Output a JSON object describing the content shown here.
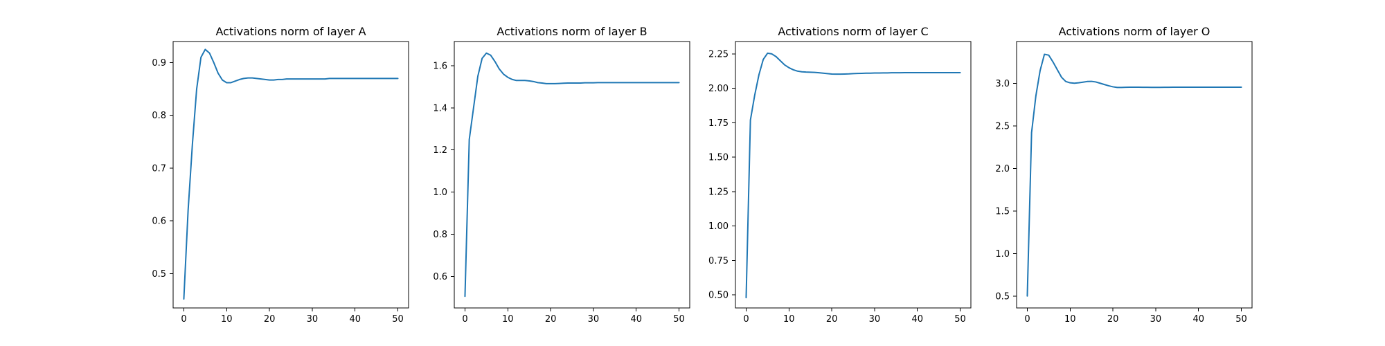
{
  "colors": {
    "series": "#1f77b4",
    "axis": "#000000",
    "background": "#ffffff"
  },
  "chart_data": [
    {
      "type": "line",
      "title": "Activations norm of layer A",
      "xlabel": "",
      "ylabel": "",
      "xlim": [
        -2.5,
        52.5
      ],
      "ylim": [
        0.435,
        0.94
      ],
      "xticks": [
        0,
        10,
        20,
        30,
        40,
        50
      ],
      "yticks": [
        0.5,
        0.6,
        0.7,
        0.8,
        0.9
      ],
      "ytick_labels": [
        "0.5",
        "0.6",
        "0.7",
        "0.8",
        "0.9"
      ],
      "grid": false,
      "series": [
        {
          "x": [
            0,
            1,
            2,
            3,
            4,
            5,
            6,
            7,
            8,
            9,
            10,
            11,
            12,
            13,
            14,
            15,
            16,
            17,
            18,
            19,
            20,
            21,
            22,
            23,
            24,
            25,
            26,
            27,
            28,
            29,
            30,
            31,
            32,
            33,
            34,
            35,
            36,
            37,
            38,
            39,
            40,
            41,
            42,
            43,
            44,
            45,
            46,
            47,
            48,
            49,
            50
          ],
          "values": [
            0.452,
            0.62,
            0.745,
            0.85,
            0.91,
            0.925,
            0.918,
            0.9,
            0.88,
            0.867,
            0.862,
            0.862,
            0.865,
            0.868,
            0.87,
            0.871,
            0.871,
            0.87,
            0.869,
            0.868,
            0.867,
            0.867,
            0.868,
            0.868,
            0.869,
            0.869,
            0.869,
            0.869,
            0.869,
            0.869,
            0.869,
            0.869,
            0.869,
            0.869,
            0.87,
            0.87,
            0.87,
            0.87,
            0.87,
            0.87,
            0.87,
            0.87,
            0.87,
            0.87,
            0.87,
            0.87,
            0.87,
            0.87,
            0.87,
            0.87,
            0.87
          ]
        }
      ]
    },
    {
      "type": "line",
      "title": "Activations norm of layer B",
      "xlabel": "",
      "ylabel": "",
      "xlim": [
        -2.5,
        52.5
      ],
      "ylim": [
        0.45,
        1.715
      ],
      "xticks": [
        0,
        10,
        20,
        30,
        40,
        50
      ],
      "yticks": [
        0.6,
        0.8,
        1.0,
        1.2,
        1.4,
        1.6
      ],
      "ytick_labels": [
        "0.6",
        "0.8",
        "1.0",
        "1.2",
        "1.4",
        "1.6"
      ],
      "grid": false,
      "series": [
        {
          "x": [
            0,
            1,
            2,
            3,
            4,
            5,
            6,
            7,
            8,
            9,
            10,
            11,
            12,
            13,
            14,
            15,
            16,
            17,
            18,
            19,
            20,
            21,
            22,
            23,
            24,
            25,
            26,
            27,
            28,
            29,
            30,
            31,
            32,
            33,
            34,
            35,
            36,
            37,
            38,
            39,
            40,
            41,
            42,
            43,
            44,
            45,
            46,
            47,
            48,
            49,
            50
          ],
          "values": [
            0.505,
            1.25,
            1.4,
            1.55,
            1.635,
            1.66,
            1.65,
            1.62,
            1.585,
            1.56,
            1.545,
            1.535,
            1.53,
            1.53,
            1.53,
            1.528,
            1.525,
            1.52,
            1.518,
            1.515,
            1.515,
            1.515,
            1.516,
            1.517,
            1.518,
            1.518,
            1.518,
            1.518,
            1.519,
            1.519,
            1.519,
            1.52,
            1.52,
            1.52,
            1.52,
            1.52,
            1.52,
            1.52,
            1.52,
            1.52,
            1.52,
            1.52,
            1.52,
            1.52,
            1.52,
            1.52,
            1.52,
            1.52,
            1.52,
            1.52,
            1.52
          ]
        }
      ]
    },
    {
      "type": "line",
      "title": "Activations norm of layer C",
      "xlabel": "",
      "ylabel": "",
      "xlim": [
        -2.5,
        52.5
      ],
      "ylim": [
        0.405,
        2.34
      ],
      "xticks": [
        0,
        10,
        20,
        30,
        40,
        50
      ],
      "yticks": [
        0.5,
        0.75,
        1.0,
        1.25,
        1.5,
        1.75,
        2.0,
        2.25
      ],
      "ytick_labels": [
        "0.50",
        "0.75",
        "1.00",
        "1.25",
        "1.50",
        "1.75",
        "2.00",
        "2.25"
      ],
      "grid": false,
      "series": [
        {
          "x": [
            0,
            1,
            2,
            3,
            4,
            5,
            6,
            7,
            8,
            9,
            10,
            11,
            12,
            13,
            14,
            15,
            16,
            17,
            18,
            19,
            20,
            21,
            22,
            23,
            24,
            25,
            26,
            27,
            28,
            29,
            30,
            31,
            32,
            33,
            34,
            35,
            36,
            37,
            38,
            39,
            40,
            41,
            42,
            43,
            44,
            45,
            46,
            47,
            48,
            49,
            50
          ],
          "values": [
            0.48,
            1.77,
            1.95,
            2.1,
            2.21,
            2.255,
            2.25,
            2.23,
            2.2,
            2.17,
            2.15,
            2.135,
            2.125,
            2.12,
            2.118,
            2.117,
            2.116,
            2.113,
            2.11,
            2.107,
            2.104,
            2.103,
            2.103,
            2.104,
            2.105,
            2.107,
            2.108,
            2.109,
            2.11,
            2.11,
            2.111,
            2.111,
            2.112,
            2.112,
            2.113,
            2.113,
            2.113,
            2.114,
            2.114,
            2.114,
            2.114,
            2.114,
            2.114,
            2.114,
            2.114,
            2.114,
            2.114,
            2.114,
            2.114,
            2.114,
            2.114
          ]
        }
      ]
    },
    {
      "type": "line",
      "title": "Activations norm of layer O",
      "xlabel": "",
      "ylabel": "",
      "xlim": [
        -2.5,
        52.5
      ],
      "ylim": [
        0.36,
        3.49
      ],
      "xticks": [
        0,
        10,
        20,
        30,
        40,
        50
      ],
      "yticks": [
        0.5,
        1.0,
        1.5,
        2.0,
        2.5,
        3.0
      ],
      "ytick_labels": [
        "0.5",
        "1.0",
        "1.5",
        "2.0",
        "2.5",
        "3.0"
      ],
      "grid": false,
      "series": [
        {
          "x": [
            0,
            1,
            2,
            3,
            4,
            5,
            6,
            7,
            8,
            9,
            10,
            11,
            12,
            13,
            14,
            15,
            16,
            17,
            18,
            19,
            20,
            21,
            22,
            23,
            24,
            25,
            26,
            27,
            28,
            29,
            30,
            31,
            32,
            33,
            34,
            35,
            36,
            37,
            38,
            39,
            40,
            41,
            42,
            43,
            44,
            45,
            46,
            47,
            48,
            49,
            50
          ],
          "values": [
            0.5,
            2.42,
            2.85,
            3.15,
            3.34,
            3.33,
            3.25,
            3.16,
            3.07,
            3.02,
            3.005,
            3.0,
            3.005,
            3.012,
            3.02,
            3.022,
            3.015,
            3.0,
            2.985,
            2.97,
            2.958,
            2.95,
            2.95,
            2.952,
            2.953,
            2.953,
            2.953,
            2.952,
            2.952,
            2.951,
            2.951,
            2.951,
            2.952,
            2.952,
            2.953,
            2.953,
            2.953,
            2.953,
            2.953,
            2.953,
            2.953,
            2.953,
            2.953,
            2.953,
            2.953,
            2.953,
            2.953,
            2.953,
            2.953,
            2.953,
            2.953
          ]
        }
      ]
    }
  ]
}
